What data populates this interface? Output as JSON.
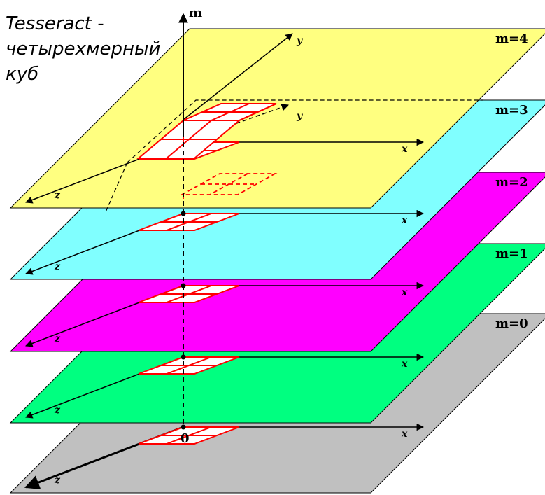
{
  "caption": {
    "line1": "Tesseract -",
    "line2": "четырехмерный",
    "line3": "куб"
  },
  "axes": {
    "vertical_label": "m",
    "origin_label": "0",
    "x_label": "x",
    "y_label": "y",
    "z_label": "z"
  },
  "planes": [
    {
      "label": "m=0",
      "color": "#c0c0c0"
    },
    {
      "label": "m=1",
      "color": "#00ff80"
    },
    {
      "label": "m=2",
      "color": "#ff00ff"
    },
    {
      "label": "m=3",
      "color": "#80ffff"
    },
    {
      "label": "m=4",
      "color": "#ffff80"
    }
  ],
  "colors": {
    "cube_outline": "#ff0000",
    "axis": "#000000"
  }
}
